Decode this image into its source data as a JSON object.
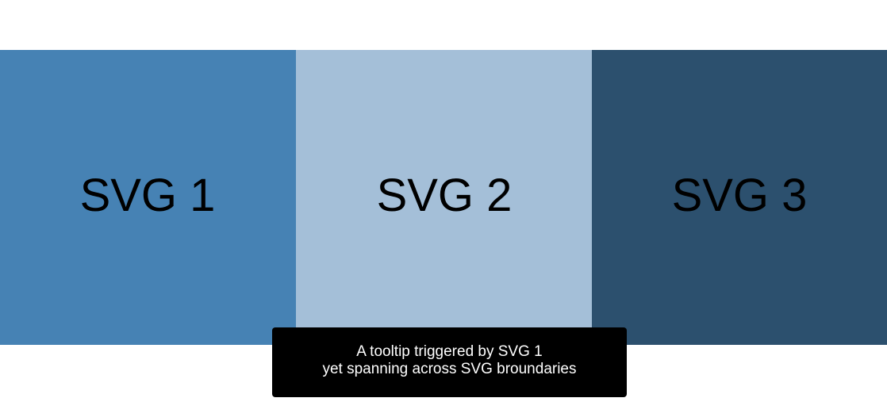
{
  "panels": [
    {
      "label": "SVG 1",
      "color": "#4682b4"
    },
    {
      "label": "SVG 2",
      "color": "#a4bfd8"
    },
    {
      "label": "SVG 3",
      "color": "#2c506e"
    }
  ],
  "tooltip": {
    "line1": "A tooltip triggered by SVG 1",
    "line2": "yet spanning across SVG broundaries",
    "background": "#000000",
    "text_color": "#ffffff"
  }
}
